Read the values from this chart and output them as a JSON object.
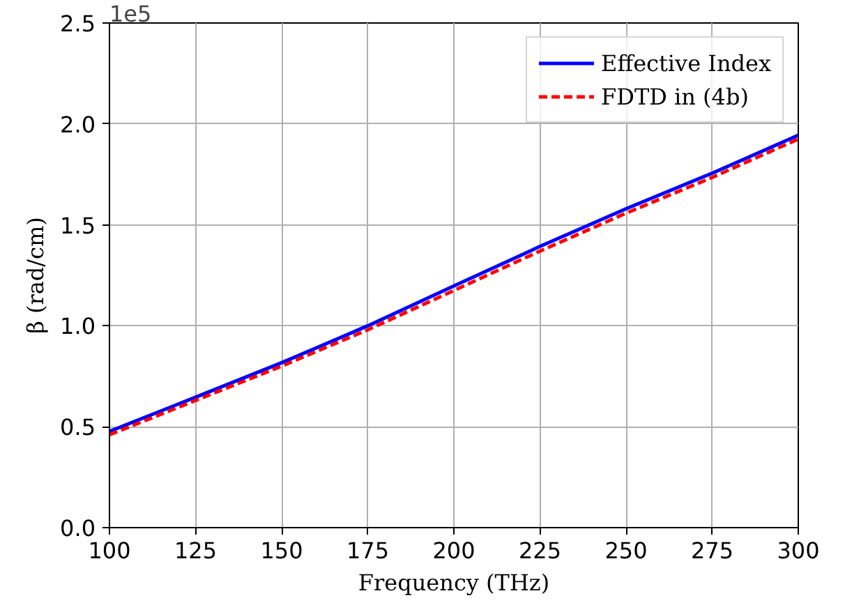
{
  "chart_data": {
    "type": "line",
    "xlabel": "Frequency (THz)",
    "ylabel": "β (rad/cm)",
    "annotations": [
      "1e5"
    ],
    "x": [
      100,
      125,
      150,
      175,
      200,
      225,
      250,
      275,
      300
    ],
    "series": [
      {
        "name": "Effective Index",
        "color": "#0000ff",
        "line_style": "solid",
        "values": [
          0.477,
          0.646,
          0.817,
          1.0,
          1.197,
          1.393,
          1.58,
          1.756,
          1.944
        ]
      },
      {
        "name": "FDTD in (4b)",
        "color": "#ff0000",
        "line_style": "dashed",
        "values": [
          0.46,
          0.63,
          0.8,
          0.98,
          1.175,
          1.37,
          1.558,
          1.735,
          1.925
        ]
      }
    ],
    "xlim": [
      100,
      300
    ],
    "ylim": [
      0,
      2.5
    ],
    "xticks": [
      100,
      125,
      150,
      175,
      200,
      225,
      250,
      275,
      300
    ],
    "yticks": [
      {
        "value": 0,
        "label": "0.0"
      },
      {
        "value": 0.5,
        "label": "0.5"
      },
      {
        "value": 1,
        "label": "1.0"
      },
      {
        "value": 1.5,
        "label": "1.5"
      },
      {
        "value": 2,
        "label": "2.0"
      },
      {
        "value": 2.5,
        "label": "2.5"
      }
    ],
    "grid": true,
    "legend": "top right"
  }
}
